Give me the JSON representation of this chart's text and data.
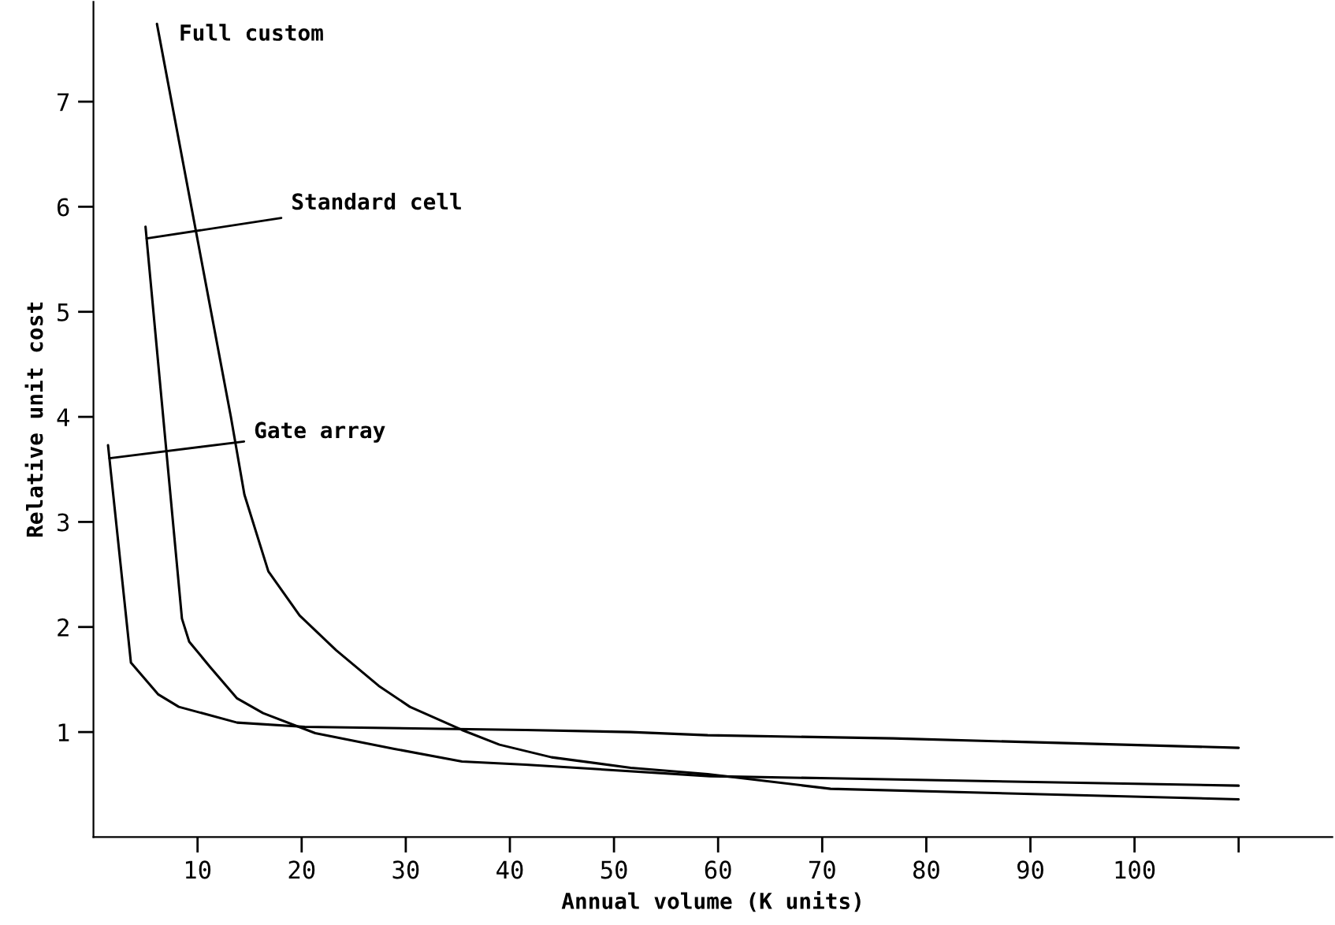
{
  "chart_data": {
    "type": "line",
    "xlabel": "Annual volume (K units)",
    "ylabel": "Relative unit cost",
    "xlim": [
      0,
      119
    ],
    "ylim": [
      0,
      7.95
    ],
    "xticks": [
      10,
      20,
      30,
      40,
      50,
      60,
      70,
      80,
      90,
      100,
      {
        "value": 110,
        "label": null
      }
    ],
    "yticks": [
      1,
      2,
      3,
      4,
      5,
      6,
      7
    ],
    "grid": false,
    "legend": false,
    "marker": "none",
    "line_style": "solid",
    "series": [
      {
        "name": "Full custom",
        "color": "#000000",
        "x": [
          6.1,
          13.2,
          14.5,
          16.8,
          19.8,
          23.3,
          27.4,
          30.4,
          35.4,
          39,
          44,
          51.6,
          59,
          70.8,
          110
        ],
        "values": [
          7.74,
          4.0,
          3.26,
          2.53,
          2.11,
          1.78,
          1.44,
          1.24,
          1.02,
          0.88,
          0.76,
          0.66,
          0.6,
          0.46,
          0.36
        ]
      },
      {
        "name": "Standard cell",
        "color": "#000000",
        "x": [
          5.0,
          8.5,
          9.2,
          11.2,
          13.8,
          16.3,
          21.3,
          28.9,
          35.4,
          41.5,
          59.2,
          70.8,
          110
        ],
        "values": [
          5.81,
          2.08,
          1.86,
          1.62,
          1.32,
          1.18,
          0.99,
          0.84,
          0.72,
          0.69,
          0.58,
          0.56,
          0.49
        ]
      },
      {
        "name": "Gate array",
        "color": "#000000",
        "x": [
          1.4,
          3.6,
          6.2,
          8.2,
          13.8,
          20.3,
          41.5,
          51.6,
          59,
          76.8,
          110
        ],
        "values": [
          3.73,
          1.66,
          1.36,
          1.24,
          1.09,
          1.05,
          1.02,
          1.0,
          0.97,
          0.94,
          0.85
        ]
      }
    ]
  }
}
